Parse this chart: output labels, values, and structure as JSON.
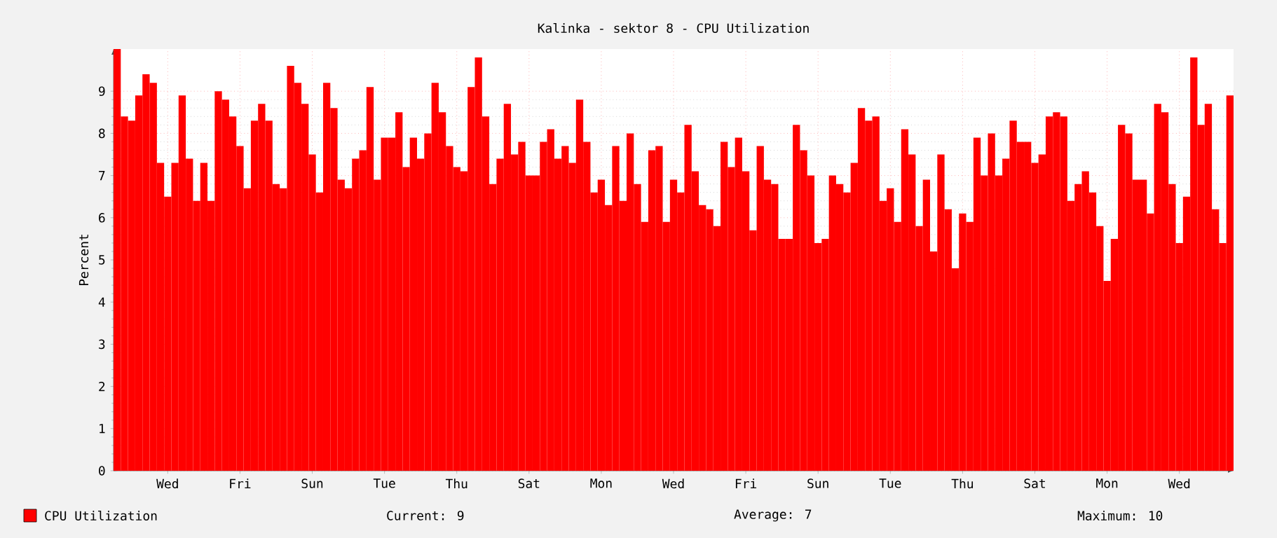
{
  "chart_data": {
    "type": "bar",
    "title": "Kalinka - sektor 8 - CPU Utilization",
    "ylabel": "Percent",
    "categories": [
      null,
      null,
      null,
      null,
      null,
      null,
      null,
      "Wed",
      null,
      null,
      null,
      null,
      null,
      null,
      null,
      null,
      null,
      "Fri",
      null,
      null,
      null,
      null,
      null,
      null,
      null,
      null,
      null,
      "Sun",
      null,
      null,
      null,
      null,
      null,
      null,
      null,
      null,
      null,
      "Tue",
      null,
      null,
      null,
      null,
      null,
      null,
      null,
      null,
      null,
      "Thu",
      null,
      null,
      null,
      null,
      null,
      null,
      null,
      null,
      null,
      "Sat",
      null,
      null,
      null,
      null,
      null,
      null,
      null,
      null,
      null,
      "Mon",
      null,
      null,
      null,
      null,
      null,
      null,
      null,
      null,
      null,
      "Wed",
      null,
      null,
      null,
      null,
      null,
      null,
      null,
      null,
      null,
      "Fri",
      null,
      null,
      null,
      null,
      null,
      null,
      null,
      null,
      null,
      "Sun",
      null,
      null,
      null,
      null,
      null,
      null,
      null,
      null,
      null,
      "Tue",
      null,
      null,
      null,
      null,
      null,
      null,
      null,
      null,
      null,
      "Thu",
      null,
      null,
      null,
      null,
      null,
      null,
      null,
      null,
      null,
      "Sat",
      null,
      null,
      null,
      null,
      null,
      null,
      null,
      null,
      null,
      "Mon",
      null,
      null,
      null,
      null,
      null,
      null,
      null,
      null,
      null,
      "Wed",
      null,
      null,
      null,
      null,
      null,
      null,
      null
    ],
    "series": [
      {
        "name": "CPU Utilization",
        "color": "#ff0000",
        "values": [
          10,
          8.4,
          8.3,
          8.9,
          9.4,
          9.2,
          7.3,
          6.5,
          7.3,
          8.9,
          7.4,
          6.4,
          7.3,
          6.4,
          9,
          8.8,
          8.4,
          7.7,
          6.7,
          8.3,
          8.7,
          8.3,
          6.8,
          6.7,
          9.6,
          9.2,
          8.7,
          7.5,
          6.6,
          9.2,
          8.6,
          6.9,
          6.7,
          7.4,
          7.6,
          9.1,
          6.9,
          7.9,
          7.9,
          8.5,
          7.2,
          7.9,
          7.4,
          8,
          9.2,
          8.5,
          7.7,
          7.2,
          7.1,
          9.1,
          9.8,
          8.4,
          6.8,
          7.4,
          8.7,
          7.5,
          7.8,
          7,
          7,
          7.8,
          8.1,
          7.4,
          7.7,
          7.3,
          8.8,
          7.8,
          6.6,
          6.9,
          6.3,
          7.7,
          6.4,
          8,
          6.8,
          5.9,
          7.6,
          7.7,
          5.9,
          6.9,
          6.6,
          8.2,
          7.1,
          6.3,
          6.2,
          5.8,
          7.8,
          7.2,
          7.9,
          7.1,
          5.7,
          7.7,
          6.9,
          6.8,
          5.5,
          5.5,
          8.2,
          7.6,
          7,
          5.4,
          5.5,
          7,
          6.8,
          6.6,
          7.3,
          8.6,
          8.3,
          8.4,
          6.4,
          6.7,
          5.9,
          8.1,
          7.5,
          5.8,
          6.9,
          5.2,
          7.5,
          6.2,
          4.8,
          6.1,
          5.9,
          7.9,
          7,
          8,
          7,
          7.4,
          8.3,
          7.8,
          7.8,
          7.3,
          7.5,
          8.4,
          8.5,
          8.4,
          6.4,
          6.8,
          7.1,
          6.6,
          5.8,
          4.5,
          5.5,
          8.2,
          8,
          6.9,
          6.9,
          6.1,
          8.7,
          8.5,
          6.8,
          5.4,
          6.5,
          9.8,
          8.2,
          8.7,
          6.2,
          5.4,
          8.9
        ]
      }
    ],
    "ylim": [
      0,
      10
    ],
    "yticks": [
      0,
      1,
      2,
      3,
      4,
      5,
      6,
      7,
      8,
      9
    ],
    "grid": true,
    "legend": "bottom left",
    "annotations": [
      "Current: 9",
      "Average: 7",
      "Maximum: 10"
    ]
  }
}
